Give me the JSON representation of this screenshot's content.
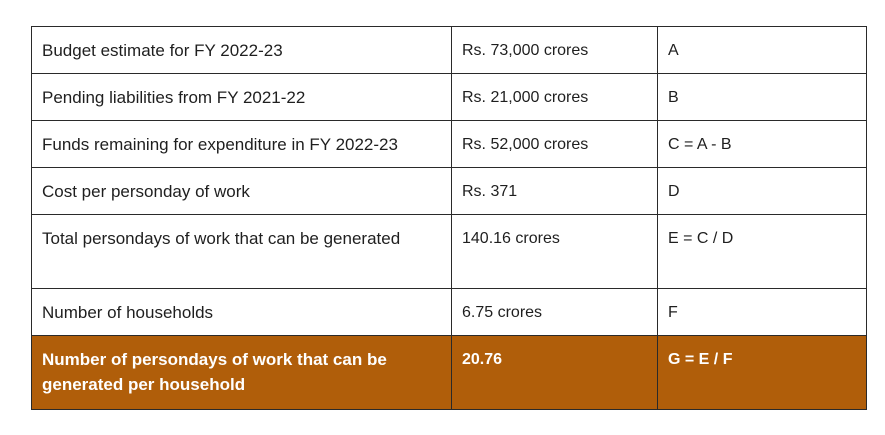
{
  "table": {
    "rows": [
      {
        "label": "Budget estimate for FY 2022-23",
        "value": "Rs. 73,000 crores",
        "formula": "A"
      },
      {
        "label": "Pending liabilities from FY 2021-22",
        "value": "Rs. 21,000 crores",
        "formula": "B"
      },
      {
        "label": "Funds remaining for expenditure in FY 2022-23",
        "value": "Rs. 52,000 crores",
        "formula": "C = A - B"
      },
      {
        "label": "Cost per personday of work",
        "value": "Rs. 371",
        "formula": "D"
      },
      {
        "label": "Total persondays of work that can be generated",
        "value": "140.16 crores",
        "formula": "E = C / D"
      },
      {
        "label": "Number of households",
        "value": "6.75 crores",
        "formula": "F"
      },
      {
        "label": "Number of persondays of work that can be generated per household",
        "value": "20.76",
        "formula": "G = E / F"
      }
    ],
    "highlight_color": "#b05e0a"
  }
}
